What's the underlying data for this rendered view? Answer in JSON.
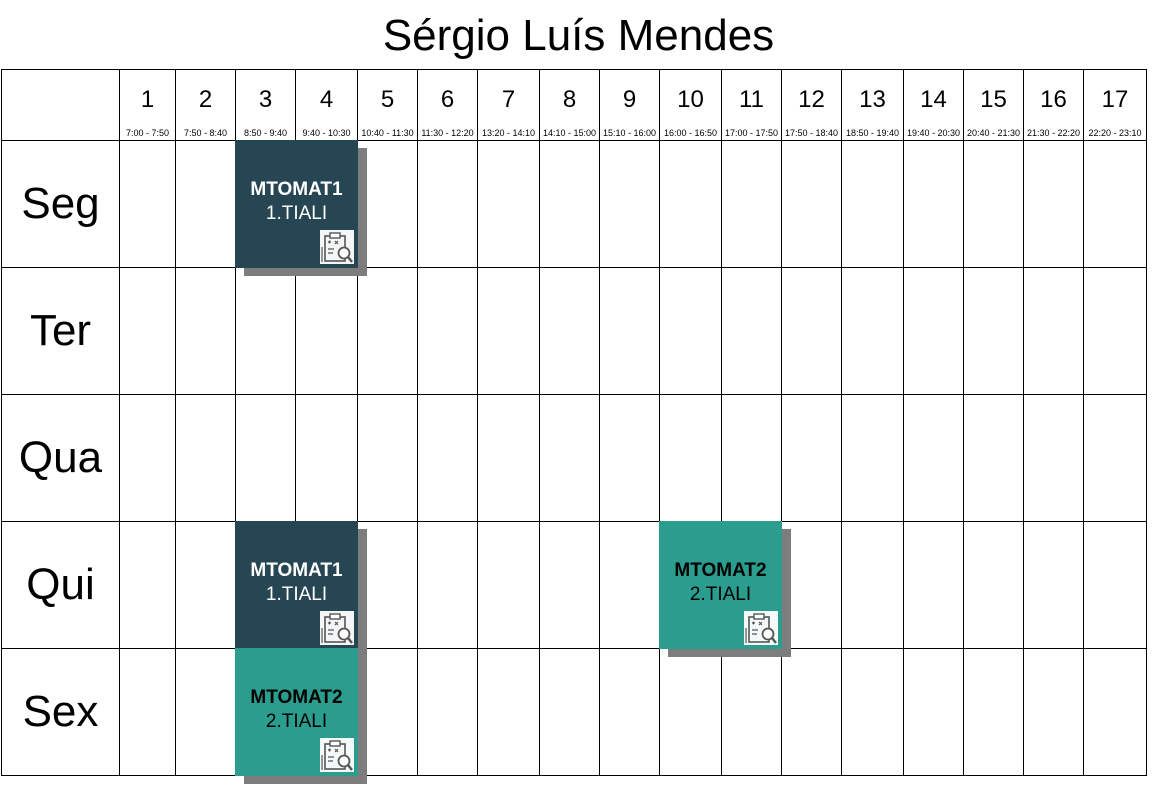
{
  "title": "Sérgio Luís Mendes",
  "periods": [
    {
      "num": "1",
      "time": "7:00 - 7:50"
    },
    {
      "num": "2",
      "time": "7:50 - 8:40"
    },
    {
      "num": "3",
      "time": "8:50 - 9:40"
    },
    {
      "num": "4",
      "time": "9:40 - 10:30"
    },
    {
      "num": "5",
      "time": "10:40 - 11:30"
    },
    {
      "num": "6",
      "time": "11:30 - 12:20"
    },
    {
      "num": "7",
      "time": "13:20 - 14:10"
    },
    {
      "num": "8",
      "time": "14:10 - 15:00"
    },
    {
      "num": "9",
      "time": "15:10 - 16:00"
    },
    {
      "num": "10",
      "time": "16:00 - 16:50"
    },
    {
      "num": "11",
      "time": "17:00 - 17:50"
    },
    {
      "num": "12",
      "time": "17:50 - 18:40"
    },
    {
      "num": "13",
      "time": "18:50 - 19:40"
    },
    {
      "num": "14",
      "time": "19:40 - 20:30"
    },
    {
      "num": "15",
      "time": "20:40 - 21:30"
    },
    {
      "num": "16",
      "time": "21:30 - 22:20"
    },
    {
      "num": "17",
      "time": "22:20 - 23:10"
    }
  ],
  "days": [
    "Seg",
    "Ter",
    "Qua",
    "Qui",
    "Sex"
  ],
  "lessons": [
    {
      "day": 0,
      "start_period": 3,
      "span": 2,
      "code": "MTOMAT1",
      "group": "1.TIALI",
      "color": "#264653",
      "text_color": "#ffffff",
      "icon": "exam-clipboard-icon"
    },
    {
      "day": 3,
      "start_period": 3,
      "span": 2,
      "code": "MTOMAT1",
      "group": "1.TIALI",
      "color": "#264653",
      "text_color": "#ffffff",
      "icon": "exam-clipboard-icon"
    },
    {
      "day": 3,
      "start_period": 10,
      "span": 2,
      "code": "MTOMAT2",
      "group": "2.TIALI",
      "color": "#2a9d8f",
      "text_color": "#000000",
      "icon": "exam-clipboard-icon"
    },
    {
      "day": 4,
      "start_period": 3,
      "span": 2,
      "code": "MTOMAT2",
      "group": "2.TIALI",
      "color": "#2a9d8f",
      "text_color": "#000000",
      "icon": "exam-clipboard-icon"
    }
  ]
}
